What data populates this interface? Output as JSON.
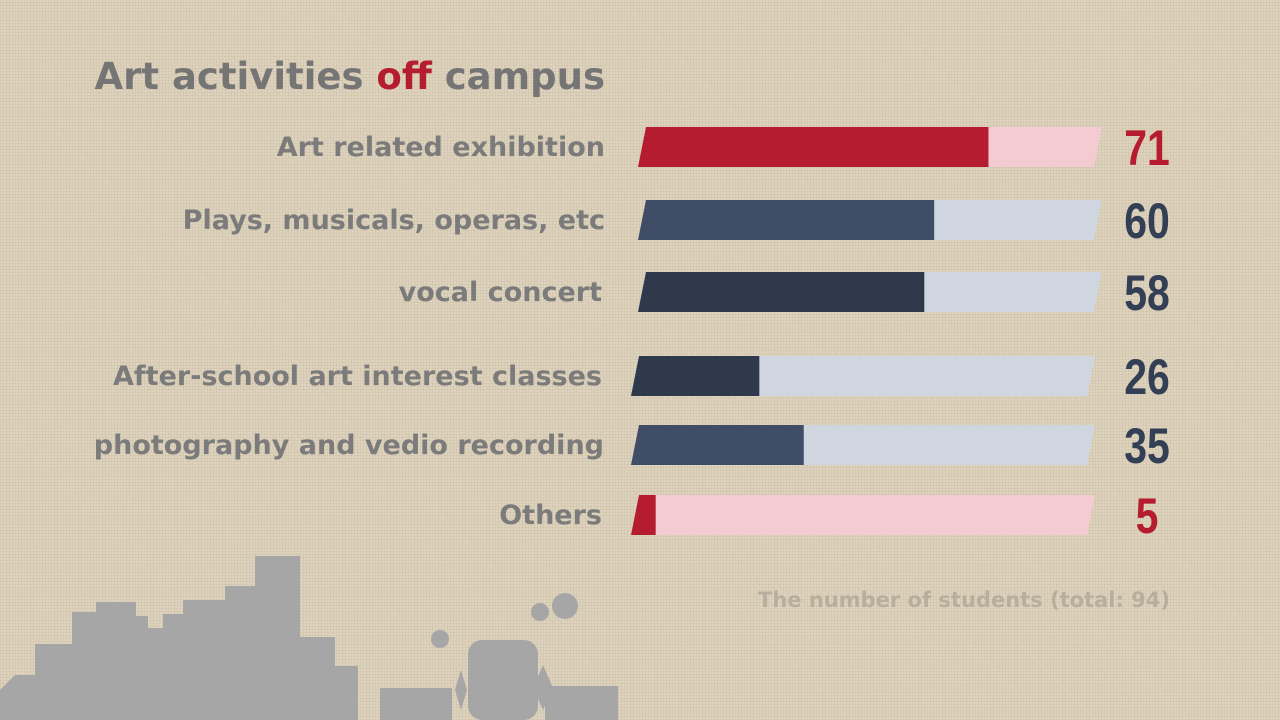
{
  "title": {
    "part1": "Art activities ",
    "accent": "off",
    "part2": " campus"
  },
  "caption": "The number of students (total: 94)",
  "colors": {
    "red": "#b51c30",
    "red_track": "#f3cbd1",
    "slate": "#3f4d66",
    "navy": "#2e394b",
    "grey_track": "#d0d6e0",
    "value_red": "#b51c30",
    "value_navy": "#333f55",
    "skyline": "#a6a6a6"
  },
  "chart_data": {
    "type": "bar",
    "orientation": "horizontal",
    "total": 94,
    "categories": [
      "Art related exhibition",
      "Plays, musicals, operas, etc",
      "vocal concert",
      "After-school art interest classes",
      "photography and vedio recording",
      "Others"
    ],
    "values": [
      71,
      60,
      58,
      26,
      35,
      5
    ],
    "value_labels": [
      "71",
      "60",
      "58",
      "26",
      "35",
      "5"
    ],
    "xlim": [
      0,
      94
    ],
    "bar_colors": [
      "red",
      "slate",
      "navy",
      "navy",
      "slate",
      "red"
    ],
    "track_colors": [
      "red_track",
      "grey_track",
      "grey_track",
      "grey_track",
      "grey_track",
      "red_track"
    ],
    "value_colors": [
      "value_red",
      "value_navy",
      "value_navy",
      "value_navy",
      "value_navy",
      "value_red"
    ],
    "grid": false,
    "legend": "none"
  }
}
